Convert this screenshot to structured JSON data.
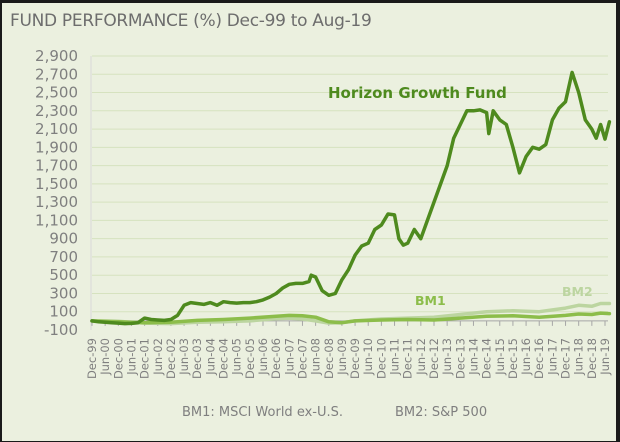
{
  "chart_data": {
    "type": "line",
    "title": "FUND PERFORMANCE (%) Dec-99 to Aug-19",
    "xlabel": "",
    "ylabel": "",
    "ylim": [
      -100,
      2900
    ],
    "yticks": [
      -100,
      100,
      300,
      500,
      700,
      900,
      1100,
      1300,
      1500,
      1700,
      1900,
      2100,
      2300,
      2500,
      2700,
      2900
    ],
    "ytick_labels": [
      "-100",
      "100",
      "300",
      "500",
      "700",
      "900",
      "1,100",
      "1,300",
      "1,500",
      "1,700",
      "1,900",
      "2,100",
      "2,300",
      "2,500",
      "2,700",
      "2,900"
    ],
    "xlim_months": [
      0,
      236
    ],
    "x_unit": "months since Dec-99",
    "xtick_labels": [
      "Dec-99",
      "Jun-00",
      "Dec-00",
      "Jun-01",
      "Dec-01",
      "Jun-02",
      "Dec-02",
      "Jun-03",
      "Dec-03",
      "Jun-04",
      "Dec-04",
      "Jun-05",
      "Dec-05",
      "Jun-06",
      "Dec-06",
      "Jun-07",
      "Dec-07",
      "Jun-08",
      "Dec-08",
      "Jun-09",
      "Dec-09",
      "Jun-10",
      "Dec-10",
      "Jun-11",
      "Dec-11",
      "Jun-12",
      "Dec-12",
      "Jun-13",
      "Dec-13",
      "Jun-14",
      "Dec-14",
      "Jun-15",
      "Dec-15",
      "Jun-16",
      "Dec-16",
      "Jun-17",
      "Dec-17",
      "Jun-18",
      "Dec-18",
      "Jun-19"
    ],
    "grid": true,
    "legend_position": "bottom",
    "series": [
      {
        "name": "Horizon Growth Fund",
        "color": "#4e8a1e",
        "x": [
          0,
          3,
          6,
          9,
          12,
          15,
          18,
          21,
          24,
          27,
          30,
          33,
          36,
          39,
          42,
          45,
          48,
          51,
          54,
          57,
          60,
          63,
          66,
          69,
          72,
          75,
          78,
          81,
          84,
          87,
          90,
          93,
          96,
          99,
          100,
          102,
          105,
          108,
          111,
          114,
          117,
          120,
          123,
          126,
          129,
          132,
          135,
          138,
          140,
          142,
          144,
          147,
          150,
          153,
          156,
          159,
          162,
          165,
          168,
          171,
          174,
          177,
          180,
          181,
          183,
          186,
          189,
          192,
          195,
          198,
          201,
          204,
          207,
          210,
          213,
          216,
          219,
          222,
          225,
          228,
          230,
          232,
          234,
          236
        ],
        "values": [
          0,
          -10,
          -15,
          -20,
          -25,
          -30,
          -28,
          -20,
          30,
          15,
          10,
          5,
          15,
          60,
          170,
          200,
          190,
          180,
          200,
          170,
          210,
          200,
          195,
          200,
          200,
          210,
          230,
          260,
          300,
          360,
          400,
          410,
          410,
          430,
          500,
          480,
          330,
          280,
          300,
          450,
          560,
          720,
          820,
          850,
          1000,
          1050,
          1170,
          1160,
          900,
          830,
          850,
          1000,
          900,
          1100,
          1300,
          1500,
          1700,
          2000,
          2150,
          2300,
          2300,
          2310,
          2280,
          2050,
          2300,
          2200,
          2150,
          1900,
          1620,
          1800,
          1900,
          1880,
          1930,
          2200,
          2330,
          2400,
          2720,
          2500,
          2200,
          2100,
          2000,
          2150,
          1990,
          2180
        ]
      },
      {
        "name": "BM1",
        "color": "#8cbd4a",
        "x": [
          0,
          12,
          24,
          36,
          48,
          60,
          72,
          84,
          90,
          96,
          102,
          108,
          114,
          120,
          132,
          144,
          156,
          168,
          180,
          192,
          204,
          216,
          222,
          228,
          232,
          236
        ],
        "values": [
          0,
          -10,
          -20,
          -15,
          5,
          15,
          30,
          50,
          60,
          55,
          40,
          -10,
          -20,
          0,
          10,
          15,
          10,
          30,
          50,
          55,
          40,
          60,
          75,
          70,
          85,
          80
        ]
      },
      {
        "name": "BM2",
        "color": "#bcd5a0",
        "x": [
          0,
          12,
          24,
          36,
          48,
          60,
          72,
          84,
          90,
          96,
          102,
          108,
          114,
          120,
          132,
          144,
          156,
          168,
          180,
          192,
          204,
          216,
          222,
          228,
          232,
          236
        ],
        "values": [
          0,
          -5,
          -25,
          -30,
          -15,
          -10,
          0,
          25,
          30,
          20,
          0,
          -25,
          -20,
          0,
          20,
          30,
          40,
          70,
          100,
          110,
          100,
          140,
          170,
          160,
          190,
          190
        ]
      }
    ],
    "annotations": [
      {
        "text": "Horizon Growth Fund",
        "series": "Horizon Growth Fund"
      },
      {
        "text": "BM1",
        "series": "BM1"
      },
      {
        "text": "BM2",
        "series": "BM2"
      }
    ],
    "legend": [
      "BM1: MSCI World ex-U.S.",
      "BM2: S&P 500"
    ]
  }
}
